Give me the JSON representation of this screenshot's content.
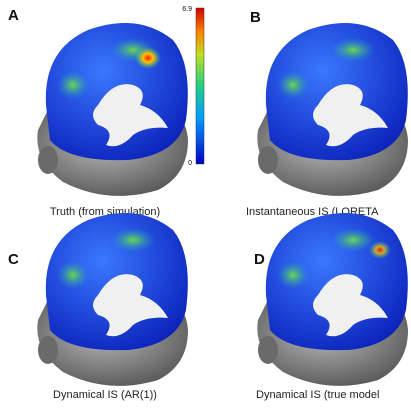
{
  "panels": [
    {
      "label": "A",
      "caption": "Truth (from simulation)"
    },
    {
      "label": "B",
      "caption": "Instantaneous IS (LORETA"
    },
    {
      "label": "C",
      "caption": "Dynamical IS (AR(1))"
    },
    {
      "label": "D",
      "caption": "Dynamical IS (true model"
    }
  ],
  "colorbar": {
    "max": "6.9",
    "min": "0"
  }
}
